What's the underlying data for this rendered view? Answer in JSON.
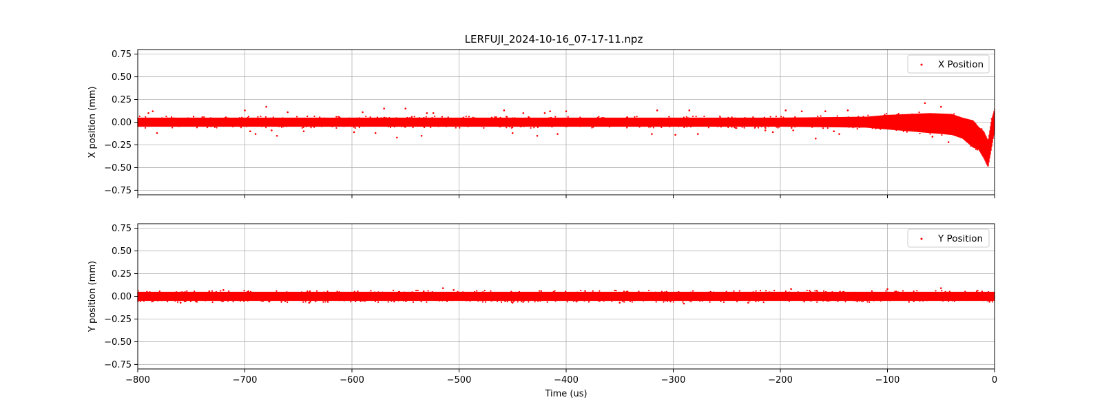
{
  "figure": {
    "title": "LERFUJI_2024-10-16_07-17-11.npz"
  },
  "chart_data": [
    {
      "type": "scatter",
      "title": "LERFUJI_2024-10-16_07-17-11.npz",
      "xlabel": "",
      "ylabel": "X position (mm)",
      "xlim": [
        -800,
        0
      ],
      "ylim": [
        -0.8,
        0.8
      ],
      "x_ticks": [
        -800,
        -700,
        -600,
        -500,
        -400,
        -300,
        -200,
        -100,
        0
      ],
      "y_ticks": [
        0.75,
        0.5,
        0.25,
        0.0,
        -0.25,
        -0.5,
        -0.75
      ],
      "y_tick_labels": [
        "0.75",
        "0.50",
        "0.25",
        "0.00",
        "−0.25",
        "−0.50",
        "−0.75"
      ],
      "show_x_tick_labels": false,
      "grid": true,
      "legend_position": "top-right",
      "series": [
        {
          "name": "X Position",
          "color": "#ff0000",
          "band_x": [
            -800,
            -700,
            -600,
            -500,
            -400,
            -300,
            -200,
            -120,
            -100,
            -80,
            -60,
            -40,
            -30,
            -20,
            -15,
            -10,
            -6,
            -3,
            0
          ],
          "band_lo": [
            -0.05,
            -0.05,
            -0.05,
            -0.05,
            -0.05,
            -0.05,
            -0.05,
            -0.06,
            -0.08,
            -0.1,
            -0.12,
            -0.14,
            -0.18,
            -0.28,
            -0.3,
            -0.4,
            -0.5,
            -0.3,
            -0.1
          ],
          "band_hi": [
            0.05,
            0.05,
            0.05,
            0.05,
            0.05,
            0.05,
            0.05,
            0.06,
            0.08,
            0.09,
            0.1,
            0.09,
            0.05,
            0.02,
            -0.05,
            -0.1,
            -0.2,
            0.02,
            0.15
          ],
          "outliers": [
            [
              -790,
              0.1
            ],
            [
              -786,
              0.12
            ],
            [
              -782,
              -0.12
            ],
            [
              -700,
              0.13
            ],
            [
              -695,
              -0.1
            ],
            [
              -690,
              -0.13
            ],
            [
              -680,
              0.17
            ],
            [
              -675,
              -0.09
            ],
            [
              -670,
              -0.15
            ],
            [
              -660,
              0.11
            ],
            [
              -645,
              -0.1
            ],
            [
              -598,
              -0.11
            ],
            [
              -590,
              0.11
            ],
            [
              -578,
              -0.12
            ],
            [
              -570,
              0.15
            ],
            [
              -558,
              -0.17
            ],
            [
              -550,
              0.15
            ],
            [
              -535,
              -0.15
            ],
            [
              -530,
              0.1
            ],
            [
              -524,
              0.1
            ],
            [
              -458,
              0.13
            ],
            [
              -450,
              -0.12
            ],
            [
              -440,
              0.1
            ],
            [
              -427,
              -0.15
            ],
            [
              -420,
              0.1
            ],
            [
              -415,
              0.12
            ],
            [
              -408,
              -0.13
            ],
            [
              -400,
              0.12
            ],
            [
              -320,
              -0.13
            ],
            [
              -315,
              0.13
            ],
            [
              -298,
              -0.14
            ],
            [
              -285,
              0.13
            ],
            [
              -277,
              -0.13
            ],
            [
              -214,
              -0.09
            ],
            [
              -207,
              -0.11
            ],
            [
              -195,
              0.13
            ],
            [
              -188,
              -0.09
            ],
            [
              -180,
              0.12
            ],
            [
              -167,
              -0.18
            ],
            [
              -158,
              0.12
            ],
            [
              -150,
              -0.1
            ],
            [
              -145,
              -0.13
            ],
            [
              -137,
              0.13
            ],
            [
              -65,
              0.21
            ],
            [
              -58,
              -0.16
            ],
            [
              -50,
              0.17
            ],
            [
              -43,
              -0.22
            ]
          ]
        }
      ]
    },
    {
      "type": "scatter",
      "title": "",
      "xlabel": "Time (us)",
      "ylabel": "Y position (mm)",
      "xlim": [
        -800,
        0
      ],
      "ylim": [
        -0.8,
        0.8
      ],
      "x_ticks": [
        -800,
        -700,
        -600,
        -500,
        -400,
        -300,
        -200,
        -100,
        0
      ],
      "x_tick_labels": [
        "−800",
        "−700",
        "−600",
        "−500",
        "−400",
        "−300",
        "−200",
        "−100",
        "0"
      ],
      "y_ticks": [
        0.75,
        0.5,
        0.25,
        0.0,
        -0.25,
        -0.5,
        -0.75
      ],
      "y_tick_labels": [
        "0.75",
        "0.50",
        "0.25",
        "0.00",
        "−0.25",
        "−0.50",
        "−0.75"
      ],
      "show_x_tick_labels": true,
      "grid": true,
      "legend_position": "top-right",
      "series": [
        {
          "name": "Y Position",
          "color": "#ff0000",
          "band_x": [
            -800,
            -700,
            -600,
            -500,
            -400,
            -300,
            -200,
            -100,
            0
          ],
          "band_lo": [
            -0.05,
            -0.05,
            -0.05,
            -0.05,
            -0.05,
            -0.05,
            -0.05,
            -0.05,
            -0.05
          ],
          "band_hi": [
            0.05,
            0.05,
            0.05,
            0.05,
            0.05,
            0.05,
            0.05,
            0.05,
            0.05
          ],
          "outliers": [
            [
              -760,
              -0.07
            ],
            [
              -720,
              0.07
            ],
            [
              -640,
              -0.07
            ],
            [
              -515,
              0.09
            ],
            [
              -505,
              0.07
            ],
            [
              -450,
              -0.07
            ],
            [
              -350,
              -0.07
            ],
            [
              -290,
              -0.08
            ],
            [
              -230,
              -0.07
            ],
            [
              -190,
              0.08
            ],
            [
              -100,
              0.08
            ],
            [
              -50,
              0.09
            ]
          ]
        }
      ]
    }
  ]
}
